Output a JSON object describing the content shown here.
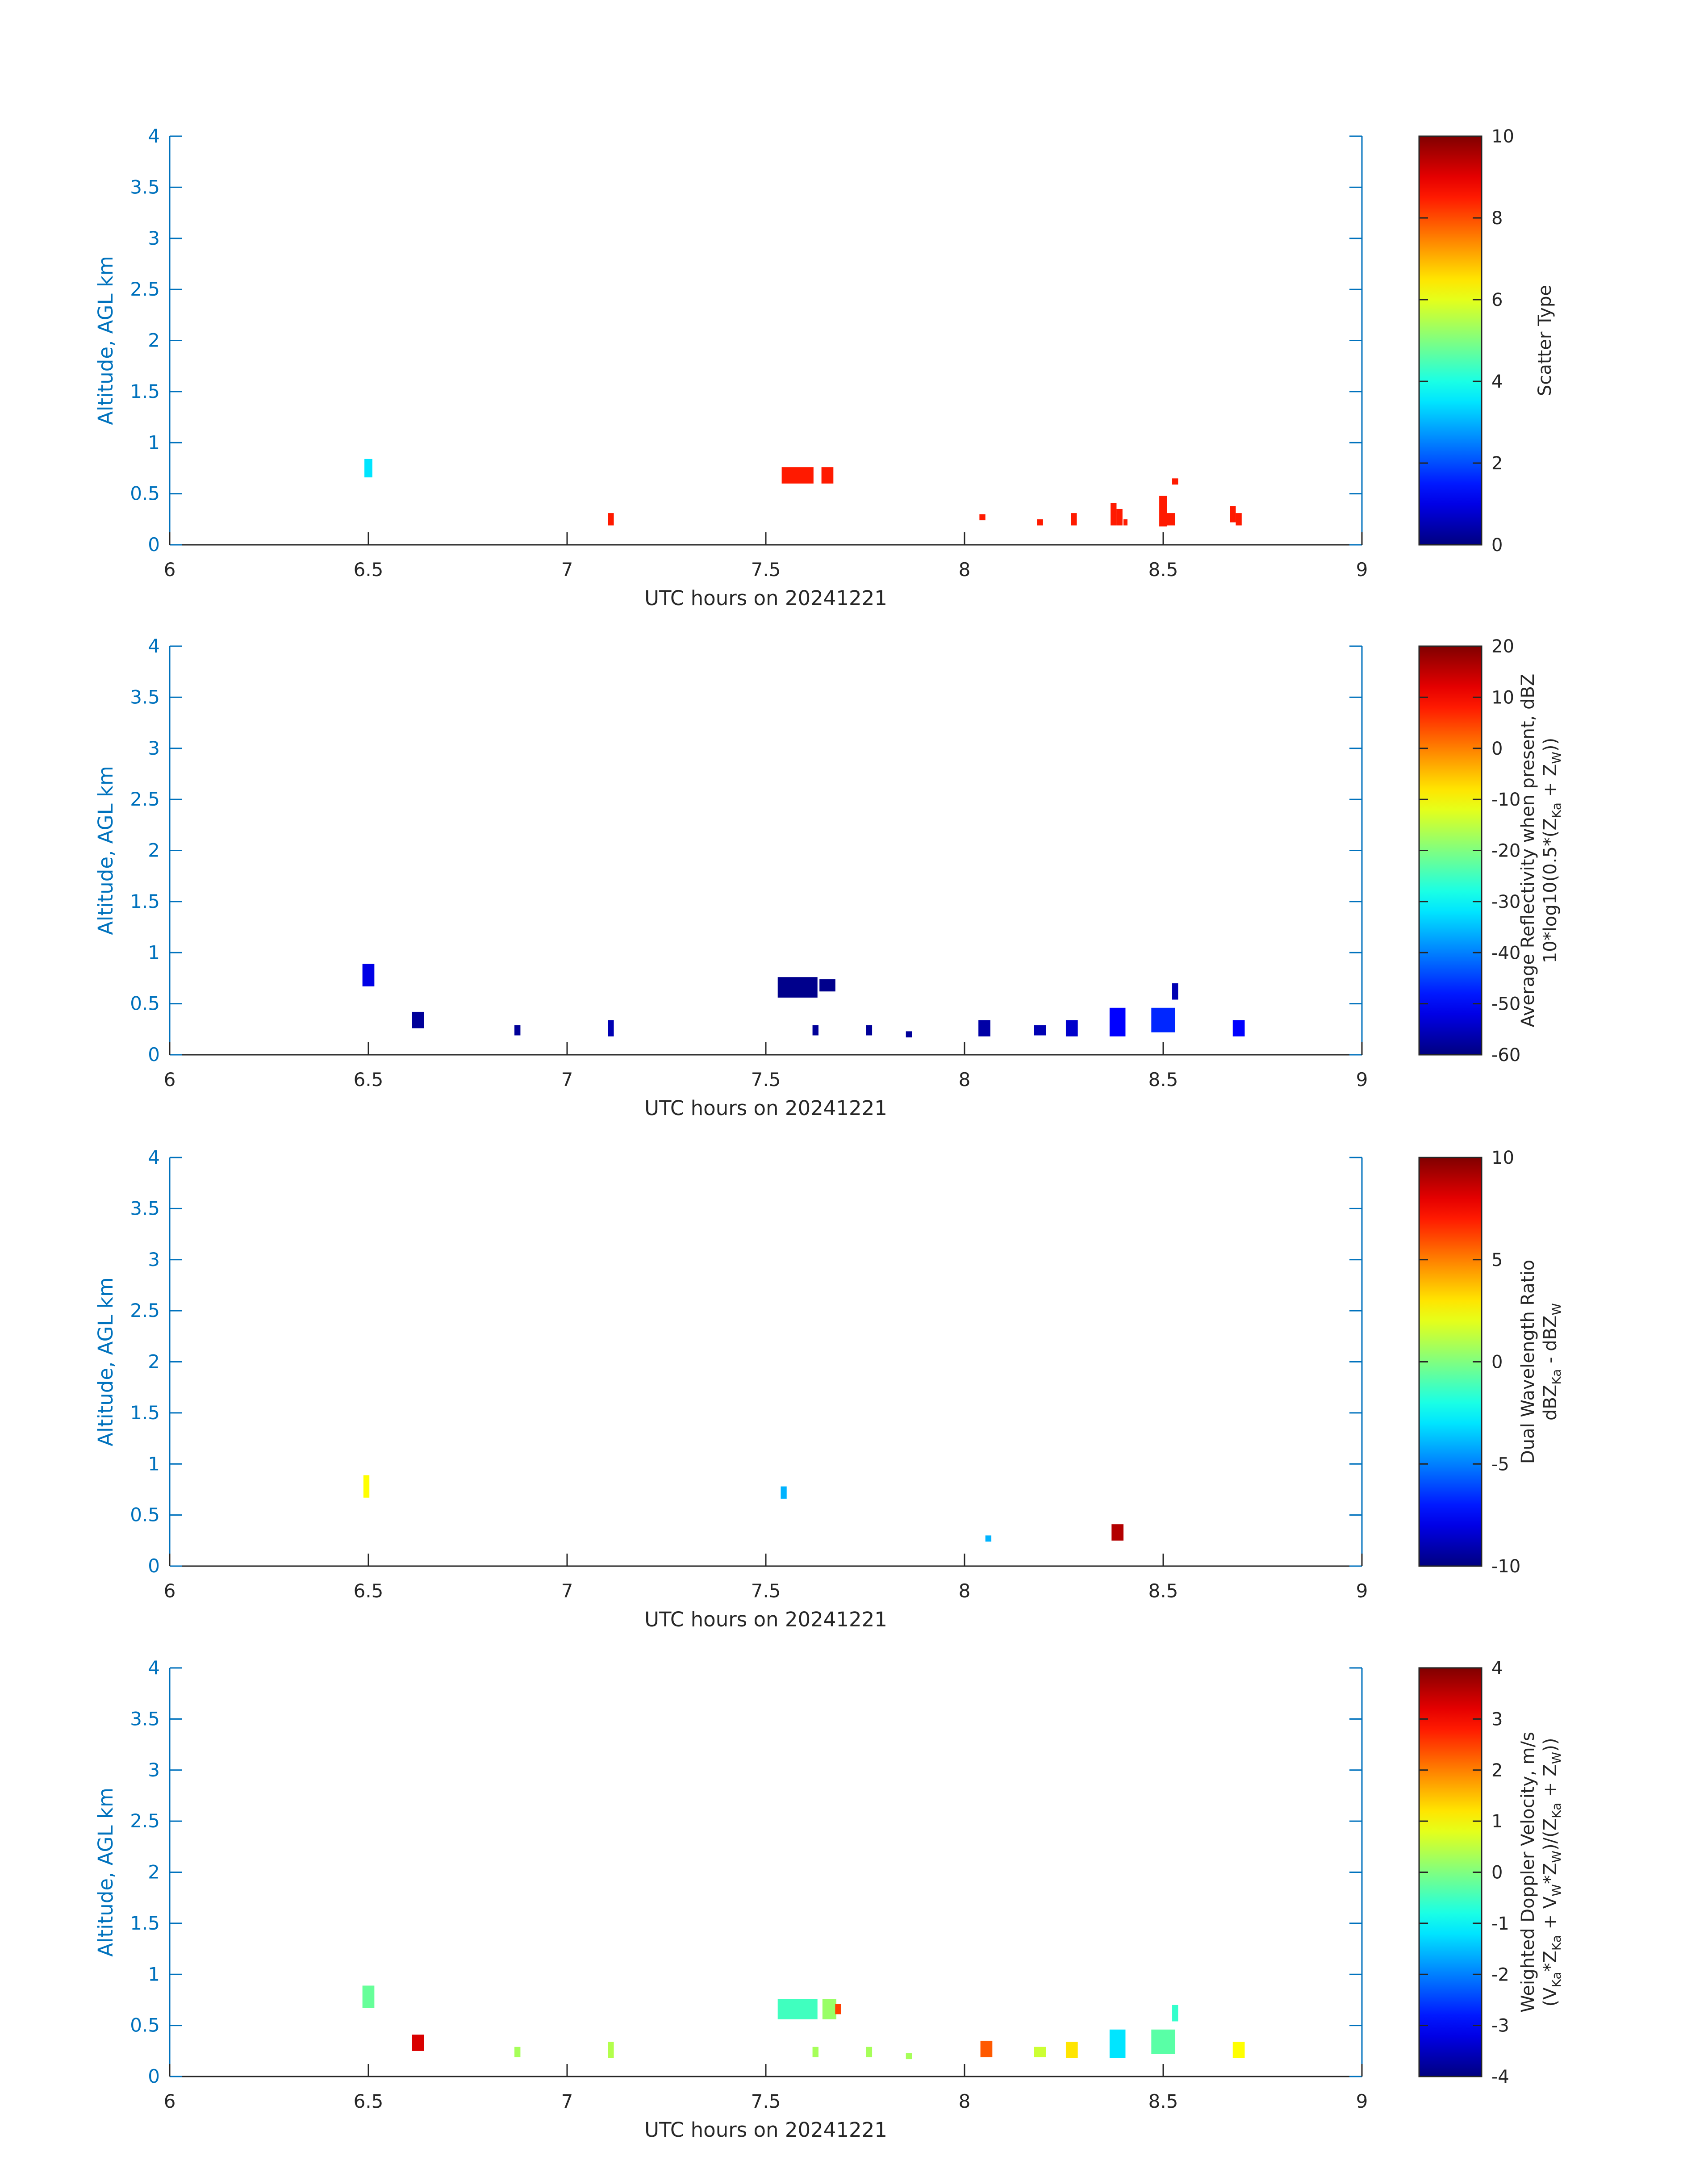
{
  "figure": {
    "background": "#ffffff",
    "axis_color": "#0072BD",
    "text_color": "#262626"
  },
  "chart_data": [
    {
      "type": "heatmap",
      "title": "",
      "xlabel": "UTC hours on 20241221",
      "ylabel": "Altitude, AGL km",
      "xlim": [
        6,
        9
      ],
      "ylim": [
        0,
        4
      ],
      "x_ticks": [
        "6",
        "6.5",
        "7",
        "7.5",
        "8",
        "8.5",
        "9"
      ],
      "y_ticks": [
        "0",
        "0.5",
        "1",
        "1.5",
        "2",
        "2.5",
        "3",
        "3.5",
        "4"
      ],
      "colorbar": {
        "label_lines": [
          "Scatter Type"
        ],
        "clim": [
          0,
          10
        ],
        "ticks": [
          "0",
          "2",
          "4",
          "6",
          "8",
          "10"
        ],
        "colormap": "jet"
      },
      "cells": [
        {
          "x": 6.5,
          "y": 0.75,
          "w": 0.02,
          "h": 0.18,
          "v": 3.5
        },
        {
          "x": 7.11,
          "y": 0.25,
          "w": 0.015,
          "h": 0.12,
          "v": 8.5
        },
        {
          "x": 7.58,
          "y": 0.68,
          "w": 0.08,
          "h": 0.16,
          "v": 8.5
        },
        {
          "x": 7.655,
          "y": 0.68,
          "w": 0.03,
          "h": 0.16,
          "v": 8.5
        },
        {
          "x": 8.045,
          "y": 0.27,
          "w": 0.015,
          "h": 0.06,
          "v": 8.5
        },
        {
          "x": 8.19,
          "y": 0.22,
          "w": 0.015,
          "h": 0.06,
          "v": 8.5
        },
        {
          "x": 8.275,
          "y": 0.25,
          "w": 0.015,
          "h": 0.12,
          "v": 8.5
        },
        {
          "x": 8.375,
          "y": 0.3,
          "w": 0.015,
          "h": 0.22,
          "v": 8.5
        },
        {
          "x": 8.39,
          "y": 0.27,
          "w": 0.015,
          "h": 0.16,
          "v": 8.5
        },
        {
          "x": 8.405,
          "y": 0.22,
          "w": 0.01,
          "h": 0.06,
          "v": 8.5
        },
        {
          "x": 8.5,
          "y": 0.33,
          "w": 0.02,
          "h": 0.3,
          "v": 8.5
        },
        {
          "x": 8.52,
          "y": 0.25,
          "w": 0.02,
          "h": 0.12,
          "v": 8.5
        },
        {
          "x": 8.53,
          "y": 0.62,
          "w": 0.015,
          "h": 0.06,
          "v": 8.5
        },
        {
          "x": 8.675,
          "y": 0.3,
          "w": 0.015,
          "h": 0.16,
          "v": 8.5
        },
        {
          "x": 8.69,
          "y": 0.25,
          "w": 0.015,
          "h": 0.12,
          "v": 8.5
        }
      ]
    },
    {
      "type": "heatmap",
      "title": "",
      "xlabel": "UTC hours on 20241221",
      "ylabel": "Altitude, AGL km",
      "xlim": [
        6,
        9
      ],
      "ylim": [
        0,
        4
      ],
      "x_ticks": [
        "6",
        "6.5",
        "7",
        "7.5",
        "8",
        "8.5",
        "9"
      ],
      "y_ticks": [
        "0",
        "0.5",
        "1",
        "1.5",
        "2",
        "2.5",
        "3",
        "3.5",
        "4"
      ],
      "colorbar": {
        "label_lines": [
          "Average Reflectivity when present, dBZ",
          "10*log10(0.5*(Z",
          "Ka",
          " + Z",
          "W",
          "))"
        ],
        "clim": [
          -60,
          20
        ],
        "ticks": [
          "-60",
          "-50",
          "-40",
          "-30",
          "-20",
          "-10",
          "0",
          "10",
          "20"
        ],
        "colormap": "jet"
      },
      "cells": [
        {
          "x": 6.5,
          "y": 0.78,
          "w": 0.03,
          "h": 0.22,
          "v": -52
        },
        {
          "x": 6.625,
          "y": 0.34,
          "w": 0.03,
          "h": 0.16,
          "v": -58
        },
        {
          "x": 6.875,
          "y": 0.24,
          "w": 0.015,
          "h": 0.1,
          "v": -58
        },
        {
          "x": 7.11,
          "y": 0.26,
          "w": 0.015,
          "h": 0.16,
          "v": -56
        },
        {
          "x": 7.58,
          "y": 0.66,
          "w": 0.1,
          "h": 0.2,
          "v": -59
        },
        {
          "x": 7.655,
          "y": 0.68,
          "w": 0.04,
          "h": 0.12,
          "v": -59
        },
        {
          "x": 7.625,
          "y": 0.24,
          "w": 0.015,
          "h": 0.1,
          "v": -58
        },
        {
          "x": 7.76,
          "y": 0.24,
          "w": 0.015,
          "h": 0.1,
          "v": -58
        },
        {
          "x": 7.86,
          "y": 0.2,
          "w": 0.015,
          "h": 0.06,
          "v": -58
        },
        {
          "x": 8.05,
          "y": 0.26,
          "w": 0.03,
          "h": 0.16,
          "v": -57
        },
        {
          "x": 8.19,
          "y": 0.24,
          "w": 0.03,
          "h": 0.1,
          "v": -56
        },
        {
          "x": 8.27,
          "y": 0.26,
          "w": 0.03,
          "h": 0.16,
          "v": -54
        },
        {
          "x": 8.385,
          "y": 0.32,
          "w": 0.04,
          "h": 0.28,
          "v": -50
        },
        {
          "x": 8.5,
          "y": 0.34,
          "w": 0.06,
          "h": 0.24,
          "v": -47
        },
        {
          "x": 8.53,
          "y": 0.62,
          "w": 0.015,
          "h": 0.16,
          "v": -56
        },
        {
          "x": 8.69,
          "y": 0.26,
          "w": 0.03,
          "h": 0.16,
          "v": -50
        }
      ]
    },
    {
      "type": "heatmap",
      "title": "",
      "xlabel": "UTC hours on 20241221",
      "ylabel": "Altitude, AGL km",
      "xlim": [
        6,
        9
      ],
      "ylim": [
        0,
        4
      ],
      "x_ticks": [
        "6",
        "6.5",
        "7",
        "7.5",
        "8",
        "8.5",
        "9"
      ],
      "y_ticks": [
        "0",
        "0.5",
        "1",
        "1.5",
        "2",
        "2.5",
        "3",
        "3.5",
        "4"
      ],
      "colorbar": {
        "label_lines": [
          "Dual Wavelength Ratio",
          "dBZ",
          "Ka",
          " - dBZ",
          "W"
        ],
        "clim": [
          -10,
          10
        ],
        "ticks": [
          "-10",
          "-5",
          "0",
          "5",
          "10"
        ],
        "colormap": "jet"
      },
      "cells": [
        {
          "x": 6.495,
          "y": 0.78,
          "w": 0.015,
          "h": 0.22,
          "v": 2.5
        },
        {
          "x": 7.545,
          "y": 0.72,
          "w": 0.015,
          "h": 0.12,
          "v": -4
        },
        {
          "x": 8.06,
          "y": 0.27,
          "w": 0.015,
          "h": 0.06,
          "v": -4
        },
        {
          "x": 8.385,
          "y": 0.33,
          "w": 0.03,
          "h": 0.16,
          "v": 9
        }
      ]
    },
    {
      "type": "heatmap",
      "title": "",
      "xlabel": "UTC hours on 20241221",
      "ylabel": "Altitude, AGL km",
      "xlim": [
        6,
        9
      ],
      "ylim": [
        0,
        4
      ],
      "x_ticks": [
        "6",
        "6.5",
        "7",
        "7.5",
        "8",
        "8.5",
        "9"
      ],
      "y_ticks": [
        "0",
        "0.5",
        "1",
        "1.5",
        "2",
        "2.5",
        "3",
        "3.5",
        "4"
      ],
      "colorbar": {
        "label_lines": [
          "Weighted Doppler Velocity, m/s",
          "(V",
          "Ka",
          "*Z",
          "Ka",
          " + V",
          "W",
          "*Z",
          "W",
          ")/(Z",
          "Ka",
          " + Z",
          "W",
          "))"
        ],
        "clim": [
          -4,
          4
        ],
        "ticks": [
          "-4",
          "-3",
          "-2",
          "-1",
          "0",
          "1",
          "2",
          "3",
          "4"
        ],
        "colormap": "jet"
      },
      "cells": [
        {
          "x": 6.5,
          "y": 0.78,
          "w": 0.03,
          "h": 0.22,
          "v": -0.2
        },
        {
          "x": 6.625,
          "y": 0.33,
          "w": 0.03,
          "h": 0.16,
          "v": 3.3
        },
        {
          "x": 6.875,
          "y": 0.24,
          "w": 0.015,
          "h": 0.1,
          "v": 0.3
        },
        {
          "x": 7.11,
          "y": 0.26,
          "w": 0.015,
          "h": 0.16,
          "v": 0.4
        },
        {
          "x": 7.58,
          "y": 0.66,
          "w": 0.1,
          "h": 0.2,
          "v": -0.5
        },
        {
          "x": 7.66,
          "y": 0.66,
          "w": 0.035,
          "h": 0.2,
          "v": 0.2
        },
        {
          "x": 7.682,
          "y": 0.66,
          "w": 0.015,
          "h": 0.1,
          "v": 2.5
        },
        {
          "x": 7.625,
          "y": 0.24,
          "w": 0.015,
          "h": 0.1,
          "v": 0.3
        },
        {
          "x": 7.76,
          "y": 0.24,
          "w": 0.015,
          "h": 0.1,
          "v": 0.3
        },
        {
          "x": 7.86,
          "y": 0.2,
          "w": 0.015,
          "h": 0.06,
          "v": 0.3
        },
        {
          "x": 8.055,
          "y": 0.27,
          "w": 0.03,
          "h": 0.16,
          "v": 2.3
        },
        {
          "x": 8.19,
          "y": 0.24,
          "w": 0.03,
          "h": 0.1,
          "v": 0.6
        },
        {
          "x": 8.27,
          "y": 0.26,
          "w": 0.03,
          "h": 0.16,
          "v": 1.2
        },
        {
          "x": 8.385,
          "y": 0.32,
          "w": 0.04,
          "h": 0.28,
          "v": -1.2
        },
        {
          "x": 8.5,
          "y": 0.34,
          "w": 0.06,
          "h": 0.24,
          "v": -0.3
        },
        {
          "x": 8.53,
          "y": 0.62,
          "w": 0.015,
          "h": 0.16,
          "v": -0.6
        },
        {
          "x": 8.69,
          "y": 0.26,
          "w": 0.03,
          "h": 0.16,
          "v": 1.0
        }
      ]
    }
  ]
}
